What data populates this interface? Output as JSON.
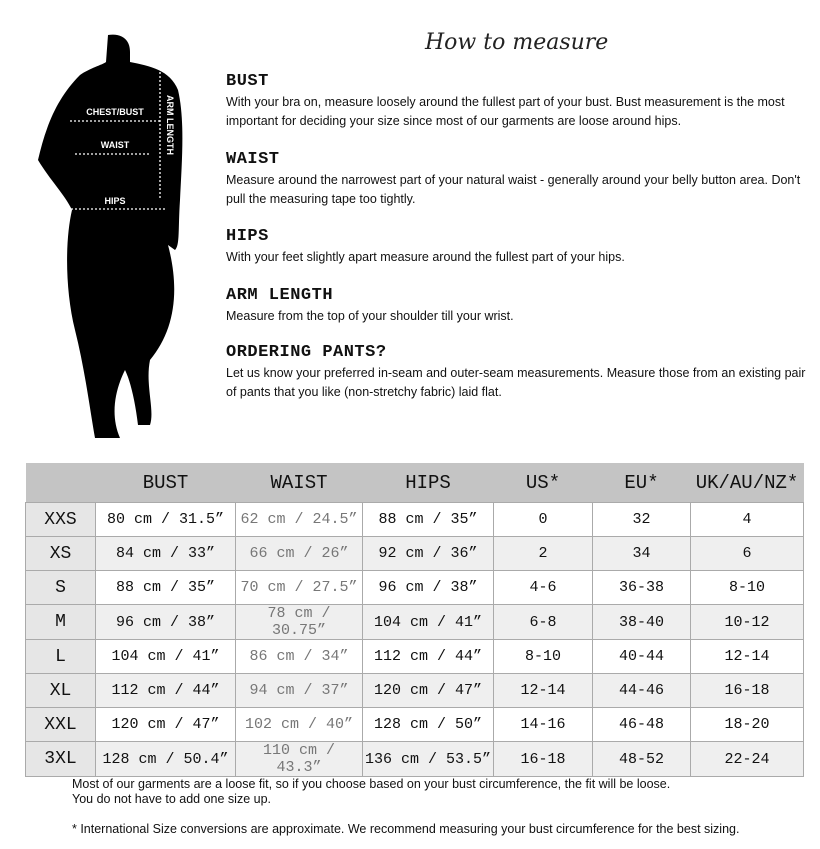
{
  "title": "How to measure",
  "figure_labels": {
    "chest": "CHEST/BUST",
    "waist": "WAIST",
    "hips": "HIPS",
    "arm": "ARM LENGTH"
  },
  "sections": [
    {
      "heading": "BUST",
      "text": "With your bra on, measure loosely around the fullest part of your bust. Bust measurement is the most important for deciding your size since most of our garments are loose around hips."
    },
    {
      "heading": "WAIST",
      "text": "Measure around the narrowest part of your natural waist - generally around your belly button area. Don't pull the measuring tape too tightly."
    },
    {
      "heading": "HIPS",
      "text": "With your feet slightly apart measure around the fullest part of your hips."
    },
    {
      "heading": "ARM LENGTH",
      "text": "Measure from the top of your shoulder till your wrist."
    },
    {
      "heading": "ORDERING PANTS?",
      "text": "Let us know your preferred in-seam and outer-seam measurements. Measure those from an existing pair of pants that you like (non-stretchy fabric) laid flat."
    }
  ],
  "table": {
    "headers": [
      "",
      "BUST",
      "WAIST",
      "HIPS",
      "US*",
      "EU*",
      "UK/AU/NZ*"
    ],
    "rows": [
      [
        "XXS",
        "80 cm / 31.5”",
        "62 cm / 24.5”",
        "88 cm / 35”",
        "0",
        "32",
        "4"
      ],
      [
        "XS",
        "84 cm / 33”",
        "66 cm / 26”",
        "92 cm / 36”",
        "2",
        "34",
        "6"
      ],
      [
        "S",
        "88 cm / 35”",
        "70 cm / 27.5”",
        "96 cm / 38”",
        "4-6",
        "36-38",
        "8-10"
      ],
      [
        "M",
        "96 cm / 38”",
        "78 cm / 30.75”",
        "104 cm / 41”",
        "6-8",
        "38-40",
        "10-12"
      ],
      [
        "L",
        "104 cm / 41”",
        "86 cm / 34”",
        "112 cm / 44”",
        "8-10",
        "40-44",
        "12-14"
      ],
      [
        "XL",
        "112 cm / 44”",
        "94 cm / 37”",
        "120 cm / 47”",
        "12-14",
        "44-46",
        "16-18"
      ],
      [
        "XXL",
        "120 cm / 47”",
        "102 cm / 40”",
        "128 cm / 50”",
        "14-16",
        "46-48",
        "18-20"
      ],
      [
        "3XL",
        "128 cm / 50.4”",
        "110 cm / 43.3”",
        "136 cm / 53.5”",
        "16-18",
        "48-52",
        "22-24"
      ]
    ]
  },
  "notes": [
    "Most of our garments are a loose fit, so if you choose based on your bust circumference, the fit will be loose.",
    "You do not have to add one size up.",
    "* International Size conversions are approximate. We recommend measuring your bust circumference for the best sizing."
  ]
}
